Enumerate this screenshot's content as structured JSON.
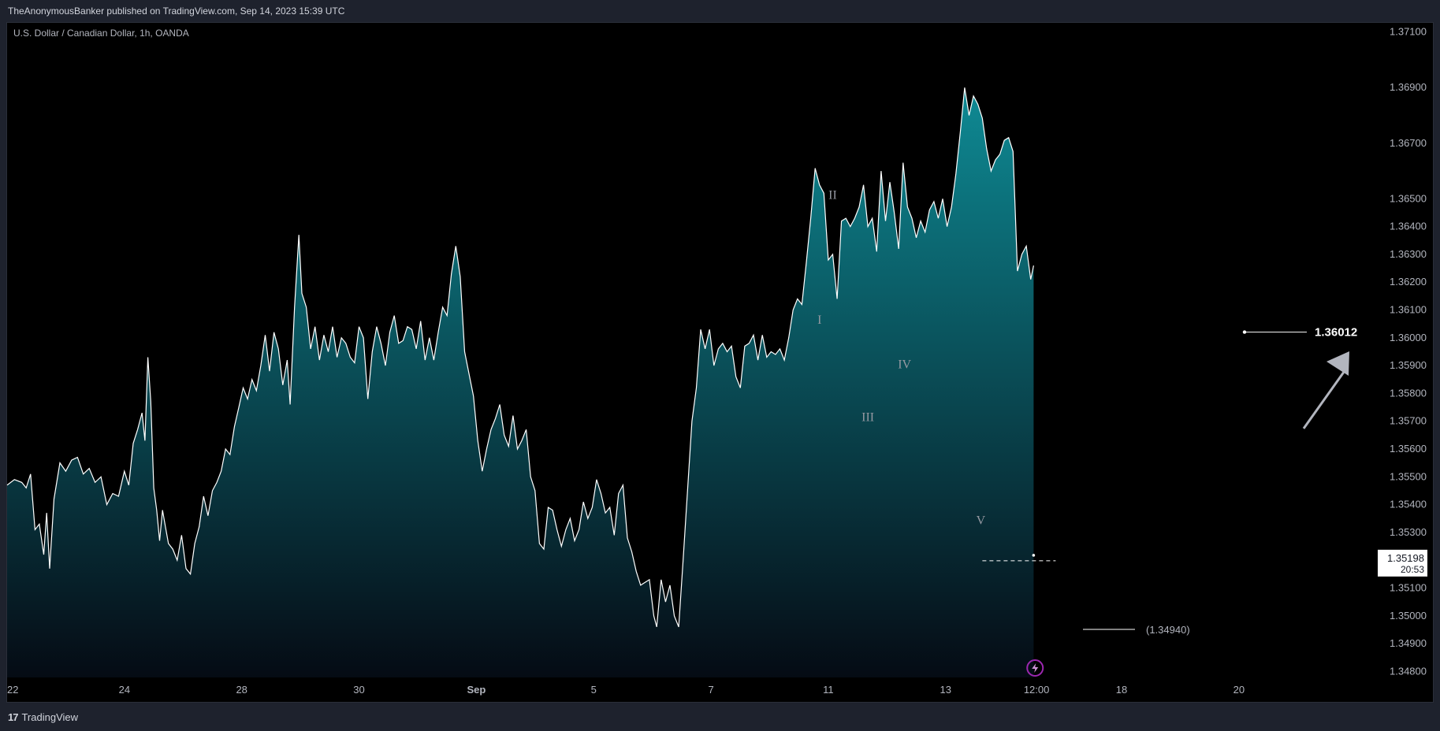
{
  "header": {
    "published_by": "TheAnonymousBanker published on TradingView.com, Sep 14, 2023 15:39 UTC"
  },
  "symbol": {
    "title": "U.S. Dollar / Canadian Dollar, 1h, OANDA"
  },
  "footer": {
    "brand": "TradingView",
    "brand_logo": "17"
  },
  "colors": {
    "background": "#000000",
    "line": "#ffffff",
    "fill_top": "#0e8a94",
    "fill_bottom": "#050b14",
    "arrow": "#b2b5be"
  },
  "chart_data": {
    "type": "area",
    "title": "U.S. Dollar / Canadian Dollar, 1h, OANDA",
    "ylim": [
      1.3475,
      1.3713
    ],
    "y_ticks": [
      "1.37100",
      "1.36900",
      "1.36700",
      "1.36500",
      "1.36400",
      "1.36300",
      "1.36200",
      "1.36100",
      "1.36000",
      "1.35900",
      "1.35800",
      "1.35700",
      "1.35600",
      "1.35500",
      "1.35400",
      "1.35300",
      "1.35100",
      "1.35000",
      "1.34900",
      "1.34800"
    ],
    "x_ticks": [
      {
        "label": "22",
        "x": 0
      },
      {
        "label": "24",
        "x": 8
      },
      {
        "label": "28",
        "x": 16
      },
      {
        "label": "30",
        "x": 24
      },
      {
        "label": "Sep",
        "x": 32,
        "bold": true
      },
      {
        "label": "5",
        "x": 40
      },
      {
        "label": "7",
        "x": 48
      },
      {
        "label": "11",
        "x": 56
      },
      {
        "label": "13",
        "x": 64
      },
      {
        "label": "12:00",
        "x": 70.2
      },
      {
        "label": "18",
        "x": 76
      },
      {
        "label": "20",
        "x": 84
      }
    ],
    "xlim": [
      0,
      92.5
    ],
    "series": [
      {
        "points": [
          [
            0,
            1.3547
          ],
          [
            0.5,
            1.3549
          ],
          [
            1,
            1.3548
          ],
          [
            1.3,
            1.3546
          ],
          [
            1.6,
            1.3551
          ],
          [
            1.9,
            1.3531
          ],
          [
            2.2,
            1.3533
          ],
          [
            2.5,
            1.3522
          ],
          [
            2.7,
            1.3537
          ],
          [
            2.9,
            1.3517
          ],
          [
            3.2,
            1.3542
          ],
          [
            3.6,
            1.3555
          ],
          [
            4,
            1.3552
          ],
          [
            4.4,
            1.3556
          ],
          [
            4.8,
            1.3557
          ],
          [
            5.2,
            1.3551
          ],
          [
            5.6,
            1.3553
          ],
          [
            6,
            1.3548
          ],
          [
            6.4,
            1.355
          ],
          [
            6.8,
            1.354
          ],
          [
            7.2,
            1.3544
          ],
          [
            7.6,
            1.3543
          ],
          [
            8,
            1.3552
          ],
          [
            8.3,
            1.3547
          ],
          [
            8.6,
            1.3562
          ],
          [
            8.9,
            1.3567
          ],
          [
            9.2,
            1.3573
          ],
          [
            9.4,
            1.3563
          ],
          [
            9.6,
            1.3593
          ],
          [
            9.8,
            1.3577
          ],
          [
            10,
            1.3546
          ],
          [
            10.2,
            1.3538
          ],
          [
            10.4,
            1.3527
          ],
          [
            10.6,
            1.3538
          ],
          [
            10.8,
            1.3532
          ],
          [
            11,
            1.3526
          ],
          [
            11.3,
            1.3524
          ],
          [
            11.6,
            1.352
          ],
          [
            11.9,
            1.3529
          ],
          [
            12.2,
            1.3517
          ],
          [
            12.5,
            1.3515
          ],
          [
            12.8,
            1.3526
          ],
          [
            13.1,
            1.3532
          ],
          [
            13.4,
            1.3543
          ],
          [
            13.7,
            1.3536
          ],
          [
            14,
            1.3545
          ],
          [
            14.3,
            1.3548
          ],
          [
            14.6,
            1.3552
          ],
          [
            14.9,
            1.356
          ],
          [
            15.2,
            1.3558
          ],
          [
            15.5,
            1.3568
          ],
          [
            15.8,
            1.3575
          ],
          [
            16.1,
            1.3582
          ],
          [
            16.4,
            1.3578
          ],
          [
            16.7,
            1.3585
          ],
          [
            17,
            1.3581
          ],
          [
            17.3,
            1.359
          ],
          [
            17.6,
            1.3601
          ],
          [
            17.9,
            1.3588
          ],
          [
            18.2,
            1.3602
          ],
          [
            18.5,
            1.3596
          ],
          [
            18.8,
            1.3583
          ],
          [
            19.1,
            1.3592
          ],
          [
            19.3,
            1.3576
          ],
          [
            19.6,
            1.3611
          ],
          [
            19.9,
            1.3637
          ],
          [
            20.1,
            1.3616
          ],
          [
            20.4,
            1.3611
          ],
          [
            20.7,
            1.3596
          ],
          [
            21,
            1.3604
          ],
          [
            21.3,
            1.3592
          ],
          [
            21.6,
            1.3601
          ],
          [
            21.9,
            1.3595
          ],
          [
            22.2,
            1.3604
          ],
          [
            22.5,
            1.3593
          ],
          [
            22.8,
            1.36
          ],
          [
            23.1,
            1.3598
          ],
          [
            23.4,
            1.3593
          ],
          [
            23.7,
            1.3591
          ],
          [
            24,
            1.3604
          ],
          [
            24.3,
            1.36
          ],
          [
            24.6,
            1.3578
          ],
          [
            24.9,
            1.3595
          ],
          [
            25.2,
            1.3604
          ],
          [
            25.5,
            1.3598
          ],
          [
            25.8,
            1.359
          ],
          [
            26.1,
            1.3602
          ],
          [
            26.4,
            1.3608
          ],
          [
            26.7,
            1.3598
          ],
          [
            27,
            1.3599
          ],
          [
            27.3,
            1.3604
          ],
          [
            27.6,
            1.3603
          ],
          [
            27.9,
            1.3596
          ],
          [
            28.2,
            1.3606
          ],
          [
            28.5,
            1.3592
          ],
          [
            28.8,
            1.36
          ],
          [
            29.1,
            1.3592
          ],
          [
            29.4,
            1.3602
          ],
          [
            29.7,
            1.3611
          ],
          [
            30,
            1.3608
          ],
          [
            30.3,
            1.3623
          ],
          [
            30.6,
            1.3633
          ],
          [
            30.9,
            1.3622
          ],
          [
            31.2,
            1.3595
          ],
          [
            31.5,
            1.3587
          ],
          [
            31.8,
            1.3579
          ],
          [
            32.1,
            1.3563
          ],
          [
            32.4,
            1.3552
          ],
          [
            32.7,
            1.356
          ],
          [
            33,
            1.3567
          ],
          [
            33.3,
            1.3571
          ],
          [
            33.6,
            1.3576
          ],
          [
            33.9,
            1.3565
          ],
          [
            34.2,
            1.3561
          ],
          [
            34.5,
            1.3572
          ],
          [
            34.8,
            1.356
          ],
          [
            35.1,
            1.3563
          ],
          [
            35.4,
            1.3567
          ],
          [
            35.7,
            1.355
          ],
          [
            36,
            1.3545
          ],
          [
            36.3,
            1.3526
          ],
          [
            36.6,
            1.3524
          ],
          [
            36.9,
            1.3539
          ],
          [
            37.2,
            1.3538
          ],
          [
            37.5,
            1.3531
          ],
          [
            37.8,
            1.3525
          ],
          [
            38.1,
            1.3531
          ],
          [
            38.4,
            1.3535
          ],
          [
            38.7,
            1.3527
          ],
          [
            39,
            1.3531
          ],
          [
            39.3,
            1.3541
          ],
          [
            39.6,
            1.3535
          ],
          [
            39.9,
            1.3539
          ],
          [
            40.2,
            1.3549
          ],
          [
            40.5,
            1.3544
          ],
          [
            40.8,
            1.3537
          ],
          [
            41.1,
            1.3539
          ],
          [
            41.4,
            1.3529
          ],
          [
            41.7,
            1.3544
          ],
          [
            42,
            1.3547
          ],
          [
            42.3,
            1.3528
          ],
          [
            42.6,
            1.3523
          ],
          [
            42.9,
            1.3516
          ],
          [
            43.2,
            1.3511
          ],
          [
            43.5,
            1.3512
          ],
          [
            43.8,
            1.3513
          ],
          [
            44.1,
            1.35
          ],
          [
            44.3,
            1.3496
          ],
          [
            44.6,
            1.3513
          ],
          [
            44.9,
            1.3505
          ],
          [
            45.2,
            1.3511
          ],
          [
            45.5,
            1.35
          ],
          [
            45.8,
            1.3496
          ],
          [
            46.1,
            1.352
          ],
          [
            46.4,
            1.3545
          ],
          [
            46.7,
            1.357
          ],
          [
            47,
            1.3582
          ],
          [
            47.3,
            1.3603
          ],
          [
            47.6,
            1.3596
          ],
          [
            47.9,
            1.3603
          ],
          [
            48.2,
            1.359
          ],
          [
            48.5,
            1.3596
          ],
          [
            48.8,
            1.3598
          ],
          [
            49.1,
            1.3595
          ],
          [
            49.4,
            1.3597
          ],
          [
            49.7,
            1.3586
          ],
          [
            50,
            1.3582
          ],
          [
            50.3,
            1.3597
          ],
          [
            50.6,
            1.3598
          ],
          [
            50.9,
            1.3601
          ],
          [
            51.2,
            1.3592
          ],
          [
            51.5,
            1.3601
          ],
          [
            51.8,
            1.3593
          ],
          [
            52.1,
            1.3595
          ],
          [
            52.4,
            1.3594
          ],
          [
            52.7,
            1.3596
          ],
          [
            53,
            1.3592
          ],
          [
            53.3,
            1.36
          ],
          [
            53.6,
            1.361
          ],
          [
            53.9,
            1.3614
          ],
          [
            54.2,
            1.3612
          ],
          [
            54.5,
            1.3627
          ],
          [
            54.8,
            1.3643
          ],
          [
            55.1,
            1.3661
          ],
          [
            55.4,
            1.3655
          ],
          [
            55.7,
            1.3652
          ],
          [
            56,
            1.3628
          ],
          [
            56.3,
            1.363
          ],
          [
            56.6,
            1.3614
          ],
          [
            56.9,
            1.3642
          ],
          [
            57.2,
            1.3643
          ],
          [
            57.5,
            1.364
          ],
          [
            57.8,
            1.3643
          ],
          [
            58.1,
            1.3647
          ],
          [
            58.4,
            1.3655
          ],
          [
            58.7,
            1.364
          ],
          [
            59,
            1.3643
          ],
          [
            59.3,
            1.3631
          ],
          [
            59.6,
            1.366
          ],
          [
            59.9,
            1.3642
          ],
          [
            60.2,
            1.3656
          ],
          [
            60.5,
            1.3645
          ],
          [
            60.8,
            1.3632
          ],
          [
            61.1,
            1.3663
          ],
          [
            61.4,
            1.3647
          ],
          [
            61.7,
            1.3643
          ],
          [
            62,
            1.3636
          ],
          [
            62.3,
            1.3642
          ],
          [
            62.6,
            1.3638
          ],
          [
            62.9,
            1.3646
          ],
          [
            63.2,
            1.3649
          ],
          [
            63.5,
            1.3643
          ],
          [
            63.8,
            1.365
          ],
          [
            64.1,
            1.364
          ],
          [
            64.4,
            1.3647
          ],
          [
            64.7,
            1.3659
          ],
          [
            65,
            1.3674
          ],
          [
            65.3,
            1.369
          ],
          [
            65.6,
            1.368
          ],
          [
            65.9,
            1.3687
          ],
          [
            66.2,
            1.3684
          ],
          [
            66.5,
            1.3679
          ],
          [
            66.8,
            1.3668
          ],
          [
            67.1,
            1.366
          ],
          [
            67.4,
            1.3664
          ],
          [
            67.7,
            1.3666
          ],
          [
            68,
            1.3671
          ],
          [
            68.3,
            1.3672
          ],
          [
            68.6,
            1.3667
          ],
          [
            68.9,
            1.3624
          ],
          [
            69.2,
            1.363
          ],
          [
            69.5,
            1.3633
          ],
          [
            69.8,
            1.3621
          ],
          [
            70,
            1.3626
          ]
        ]
      }
    ],
    "annotations": [
      {
        "label": "II",
        "x": 56.3,
        "y": 1.365
      },
      {
        "label": "I",
        "x": 55.4,
        "y": 1.3605
      },
      {
        "label": "III",
        "x": 58.7,
        "y": 1.357
      },
      {
        "label": "IV",
        "x": 61.2,
        "y": 1.3589
      },
      {
        "label": "V",
        "x": 66.4,
        "y": 1.3533
      }
    ],
    "last_price": "1.35198",
    "countdown": "20:53",
    "target_label": "1.36012",
    "target_value": 1.36012,
    "low_label": "(1.34940)",
    "low_value": 1.3494
  }
}
